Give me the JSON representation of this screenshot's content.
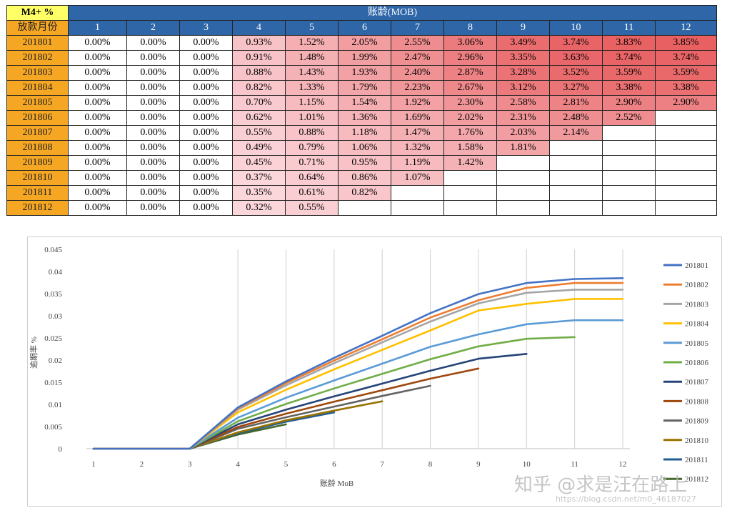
{
  "table": {
    "corner_label": "M4+ %",
    "banner": "账龄(MOB)",
    "row_header_title": "放款月份",
    "mob_headers": [
      "1",
      "2",
      "3",
      "4",
      "5",
      "6",
      "7",
      "8",
      "9",
      "10",
      "11",
      "12"
    ],
    "rows": [
      {
        "month": "201801",
        "cells": [
          "0.00%",
          "0.00%",
          "0.00%",
          "0.93%",
          "1.52%",
          "2.05%",
          "2.55%",
          "3.06%",
          "3.49%",
          "3.74%",
          "3.83%",
          "3.85%"
        ]
      },
      {
        "month": "201802",
        "cells": [
          "0.00%",
          "0.00%",
          "0.00%",
          "0.91%",
          "1.48%",
          "1.99%",
          "2.47%",
          "2.96%",
          "3.35%",
          "3.63%",
          "3.74%",
          "3.74%"
        ]
      },
      {
        "month": "201803",
        "cells": [
          "0.00%",
          "0.00%",
          "0.00%",
          "0.88%",
          "1.43%",
          "1.93%",
          "2.40%",
          "2.87%",
          "3.28%",
          "3.52%",
          "3.59%",
          "3.59%"
        ]
      },
      {
        "month": "201804",
        "cells": [
          "0.00%",
          "0.00%",
          "0.00%",
          "0.82%",
          "1.33%",
          "1.79%",
          "2.23%",
          "2.67%",
          "3.12%",
          "3.27%",
          "3.38%",
          "3.38%"
        ]
      },
      {
        "month": "201805",
        "cells": [
          "0.00%",
          "0.00%",
          "0.00%",
          "0.70%",
          "1.15%",
          "1.54%",
          "1.92%",
          "2.30%",
          "2.58%",
          "2.81%",
          "2.90%",
          "2.90%"
        ]
      },
      {
        "month": "201806",
        "cells": [
          "0.00%",
          "0.00%",
          "0.00%",
          "0.62%",
          "1.01%",
          "1.36%",
          "1.69%",
          "2.02%",
          "2.31%",
          "2.48%",
          "2.52%",
          ""
        ]
      },
      {
        "month": "201807",
        "cells": [
          "0.00%",
          "0.00%",
          "0.00%",
          "0.55%",
          "0.88%",
          "1.18%",
          "1.47%",
          "1.76%",
          "2.03%",
          "2.14%",
          "",
          ""
        ]
      },
      {
        "month": "201808",
        "cells": [
          "0.00%",
          "0.00%",
          "0.00%",
          "0.49%",
          "0.79%",
          "1.06%",
          "1.32%",
          "1.58%",
          "1.81%",
          "",
          "",
          ""
        ]
      },
      {
        "month": "201809",
        "cells": [
          "0.00%",
          "0.00%",
          "0.00%",
          "0.45%",
          "0.71%",
          "0.95%",
          "1.19%",
          "1.42%",
          "",
          "",
          "",
          ""
        ]
      },
      {
        "month": "201810",
        "cells": [
          "0.00%",
          "0.00%",
          "0.00%",
          "0.37%",
          "0.64%",
          "0.86%",
          "1.07%",
          "",
          "",
          "",
          "",
          ""
        ]
      },
      {
        "month": "201811",
        "cells": [
          "0.00%",
          "0.00%",
          "0.00%",
          "0.35%",
          "0.61%",
          "0.82%",
          "",
          "",
          "",
          "",
          "",
          ""
        ]
      },
      {
        "month": "201812",
        "cells": [
          "0.00%",
          "0.00%",
          "0.00%",
          "0.32%",
          "0.55%",
          "",
          "",
          "",
          "",
          "",
          "",
          ""
        ]
      }
    ]
  },
  "chart_data": {
    "type": "line",
    "xlabel": "账龄 MoB",
    "ylabel": "逾期率 %",
    "x": [
      1,
      2,
      3,
      4,
      5,
      6,
      7,
      8,
      9,
      10,
      11,
      12
    ],
    "ylim": [
      0,
      0.045
    ],
    "yticks": [
      "0",
      "0.005",
      "0.01",
      "0.015",
      "0.02",
      "0.025",
      "0.03",
      "0.035",
      "0.04",
      "0.045"
    ],
    "legend_position": "right",
    "grid": "vertical",
    "series": [
      {
        "name": "201801",
        "color": "#4472c4",
        "values": [
          0,
          0,
          0,
          0.0093,
          0.0152,
          0.0205,
          0.0255,
          0.0306,
          0.0349,
          0.0374,
          0.0383,
          0.0385
        ]
      },
      {
        "name": "201802",
        "color": "#ed7d31",
        "values": [
          0,
          0,
          0,
          0.0091,
          0.0148,
          0.0199,
          0.0247,
          0.0296,
          0.0335,
          0.0363,
          0.0374,
          0.0374
        ]
      },
      {
        "name": "201803",
        "color": "#a5a5a5",
        "values": [
          0,
          0,
          0,
          0.0088,
          0.0143,
          0.0193,
          0.024,
          0.0287,
          0.0328,
          0.0352,
          0.0359,
          0.0359
        ]
      },
      {
        "name": "201804",
        "color": "#ffc000",
        "values": [
          0,
          0,
          0,
          0.0082,
          0.0133,
          0.0179,
          0.0223,
          0.0267,
          0.0312,
          0.0327,
          0.0338,
          0.0338
        ]
      },
      {
        "name": "201805",
        "color": "#5b9bd5",
        "values": [
          0,
          0,
          0,
          0.007,
          0.0115,
          0.0154,
          0.0192,
          0.023,
          0.0258,
          0.0281,
          0.029,
          0.029
        ]
      },
      {
        "name": "201806",
        "color": "#70ad47",
        "values": [
          0,
          0,
          0,
          0.0062,
          0.0101,
          0.0136,
          0.0169,
          0.0202,
          0.0231,
          0.0248,
          0.0252,
          null
        ]
      },
      {
        "name": "201807",
        "color": "#264478",
        "values": [
          0,
          0,
          0,
          0.0055,
          0.0088,
          0.0118,
          0.0147,
          0.0176,
          0.0203,
          0.0214,
          null,
          null
        ]
      },
      {
        "name": "201808",
        "color": "#9e480e",
        "values": [
          0,
          0,
          0,
          0.0049,
          0.0079,
          0.0106,
          0.0132,
          0.0158,
          0.0181,
          null,
          null,
          null
        ]
      },
      {
        "name": "201809",
        "color": "#636363",
        "values": [
          0,
          0,
          0,
          0.0045,
          0.0071,
          0.0095,
          0.0119,
          0.0142,
          null,
          null,
          null,
          null
        ]
      },
      {
        "name": "201810",
        "color": "#997300",
        "values": [
          0,
          0,
          0,
          0.0037,
          0.0064,
          0.0086,
          0.0107,
          null,
          null,
          null,
          null,
          null
        ]
      },
      {
        "name": "201811",
        "color": "#255e91",
        "values": [
          0,
          0,
          0,
          0.0035,
          0.0061,
          0.0082,
          null,
          null,
          null,
          null,
          null,
          null
        ]
      },
      {
        "name": "201812",
        "color": "#43682b",
        "values": [
          0,
          0,
          0,
          0.0032,
          0.0055,
          null,
          null,
          null,
          null,
          null,
          null,
          null
        ]
      }
    ]
  },
  "watermark": {
    "text": "知乎 @求是汪在路上",
    "url": "https://blog.csdn.net/m0_46187027"
  }
}
